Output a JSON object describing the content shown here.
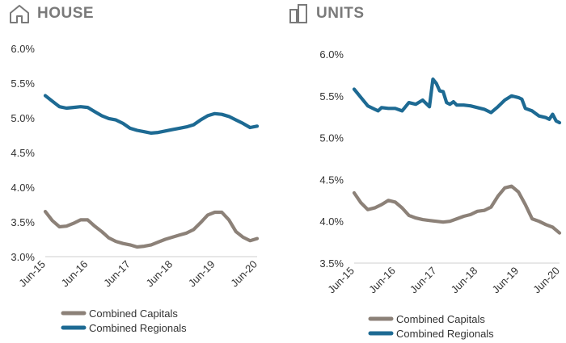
{
  "colors": {
    "capitals": "#8c8178",
    "regionals": "#1d6a93",
    "axis": "#cfcfcf",
    "title": "#7a7a7a"
  },
  "icons": {
    "house": "house-icon",
    "units": "building-icon"
  },
  "charts": [
    {
      "id": "house",
      "title": "HOUSE",
      "chart_data": {
        "type": "line",
        "title": "HOUSE",
        "x_ticks": [
          "Jun-15",
          "Jun-16",
          "Jun-17",
          "Jun-18",
          "Jun-19",
          "Jun-20"
        ],
        "y_ticks": [
          "6.0%",
          "5.5%",
          "5.0%",
          "4.5%",
          "4.0%",
          "3.5%",
          "3.0%"
        ],
        "ylim": [
          3.0,
          6.0
        ],
        "xlim": [
          "Jun-15",
          "Jun-20"
        ],
        "grid": false,
        "legend_position": "bottom-left",
        "series": [
          {
            "name": "Combined Capitals",
            "key": "capitals",
            "x": [
              "Jun-15",
              "Aug-15",
              "Oct-15",
              "Dec-15",
              "Feb-16",
              "Apr-16",
              "Jun-16",
              "Aug-16",
              "Oct-16",
              "Dec-16",
              "Feb-17",
              "Apr-17",
              "Jun-17",
              "Aug-17",
              "Oct-17",
              "Dec-17",
              "Feb-18",
              "Apr-18",
              "Jun-18",
              "Aug-18",
              "Oct-18",
              "Dec-18",
              "Feb-19",
              "Apr-19",
              "Jun-19",
              "Aug-19",
              "Oct-19",
              "Dec-19",
              "Feb-20",
              "Apr-20",
              "Jun-20"
            ],
            "values": [
              3.65,
              3.52,
              3.43,
              3.44,
              3.48,
              3.53,
              3.53,
              3.44,
              3.36,
              3.27,
              3.22,
              3.19,
              3.17,
              3.14,
              3.15,
              3.17,
              3.21,
              3.25,
              3.28,
              3.31,
              3.34,
              3.39,
              3.49,
              3.6,
              3.64,
              3.64,
              3.53,
              3.36,
              3.28,
              3.23,
              3.26
            ]
          },
          {
            "name": "Combined Regionals",
            "key": "regionals",
            "x": [
              "Jun-15",
              "Aug-15",
              "Oct-15",
              "Dec-15",
              "Feb-16",
              "Apr-16",
              "Jun-16",
              "Aug-16",
              "Oct-16",
              "Dec-16",
              "Feb-17",
              "Apr-17",
              "Jun-17",
              "Aug-17",
              "Oct-17",
              "Dec-17",
              "Feb-18",
              "Apr-18",
              "Jun-18",
              "Aug-18",
              "Oct-18",
              "Dec-18",
              "Feb-19",
              "Apr-19",
              "Jun-19",
              "Aug-19",
              "Oct-19",
              "Dec-19",
              "Feb-20",
              "Apr-20",
              "Jun-20"
            ],
            "values": [
              5.32,
              5.24,
              5.16,
              5.14,
              5.15,
              5.16,
              5.15,
              5.09,
              5.03,
              4.99,
              4.97,
              4.92,
              4.85,
              4.82,
              4.8,
              4.78,
              4.79,
              4.81,
              4.83,
              4.85,
              4.87,
              4.9,
              4.97,
              5.03,
              5.06,
              5.05,
              5.02,
              4.97,
              4.92,
              4.86,
              4.88
            ]
          }
        ]
      }
    },
    {
      "id": "units",
      "title": "UNITS",
      "chart_data": {
        "type": "line",
        "title": "UNITS",
        "x_ticks": [
          "Jun-15",
          "Jun-16",
          "Jun-17",
          "Jun-18",
          "Jun-19",
          "Jun-20"
        ],
        "y_ticks": [
          "6.0%",
          "5.5%",
          "5.0%",
          "4.5%",
          "4.0%",
          "3.5%"
        ],
        "ylim": [
          3.5,
          6.0
        ],
        "xlim": [
          "Jun-15",
          "Jun-20"
        ],
        "grid": false,
        "legend_position": "bottom-left",
        "series": [
          {
            "name": "Combined Capitals",
            "key": "capitals",
            "x": [
              "Jun-15",
              "Aug-15",
              "Oct-15",
              "Dec-15",
              "Feb-16",
              "Apr-16",
              "Jun-16",
              "Aug-16",
              "Oct-16",
              "Dec-16",
              "Feb-17",
              "Apr-17",
              "Jun-17",
              "Aug-17",
              "Oct-17",
              "Dec-17",
              "Feb-18",
              "Apr-18",
              "Jun-18",
              "Aug-18",
              "Oct-18",
              "Dec-18",
              "Feb-19",
              "Apr-19",
              "Jun-19",
              "Aug-19",
              "Oct-19",
              "Dec-19",
              "Feb-20",
              "Apr-20",
              "Jun-20"
            ],
            "values": [
              4.34,
              4.22,
              4.14,
              4.16,
              4.2,
              4.25,
              4.23,
              4.16,
              4.07,
              4.04,
              4.02,
              4.01,
              4.0,
              3.99,
              4.0,
              4.03,
              4.06,
              4.08,
              4.12,
              4.13,
              4.17,
              4.3,
              4.4,
              4.42,
              4.35,
              4.2,
              4.03,
              4.0,
              3.96,
              3.93,
              3.86
            ]
          },
          {
            "name": "Combined Regionals",
            "key": "regionals",
            "x": [
              "Jun-15",
              "Aug-15",
              "Oct-15",
              "Dec-15",
              "Jan-16",
              "Feb-16",
              "Apr-16",
              "Jun-16",
              "Aug-16",
              "Oct-16",
              "Dec-16",
              "Feb-17",
              "Apr-17",
              "May-17",
              "Jun-17",
              "Jul-17",
              "Aug-17",
              "Sep-17",
              "Oct-17",
              "Nov-17",
              "Dec-17",
              "Feb-18",
              "Apr-18",
              "Jun-18",
              "Aug-18",
              "Oct-18",
              "Dec-18",
              "Feb-19",
              "Apr-19",
              "Jun-19",
              "Jul-19",
              "Aug-19",
              "Oct-19",
              "Dec-19",
              "Feb-20",
              "Mar-20",
              "Apr-20",
              "May-20",
              "Jun-20"
            ],
            "values": [
              5.58,
              5.48,
              5.38,
              5.34,
              5.32,
              5.36,
              5.35,
              5.35,
              5.32,
              5.42,
              5.4,
              5.45,
              5.37,
              5.7,
              5.65,
              5.56,
              5.55,
              5.42,
              5.4,
              5.43,
              5.39,
              5.39,
              5.38,
              5.36,
              5.34,
              5.3,
              5.37,
              5.45,
              5.5,
              5.48,
              5.46,
              5.35,
              5.32,
              5.26,
              5.24,
              5.22,
              5.28,
              5.2,
              5.18
            ]
          }
        ]
      }
    }
  ]
}
